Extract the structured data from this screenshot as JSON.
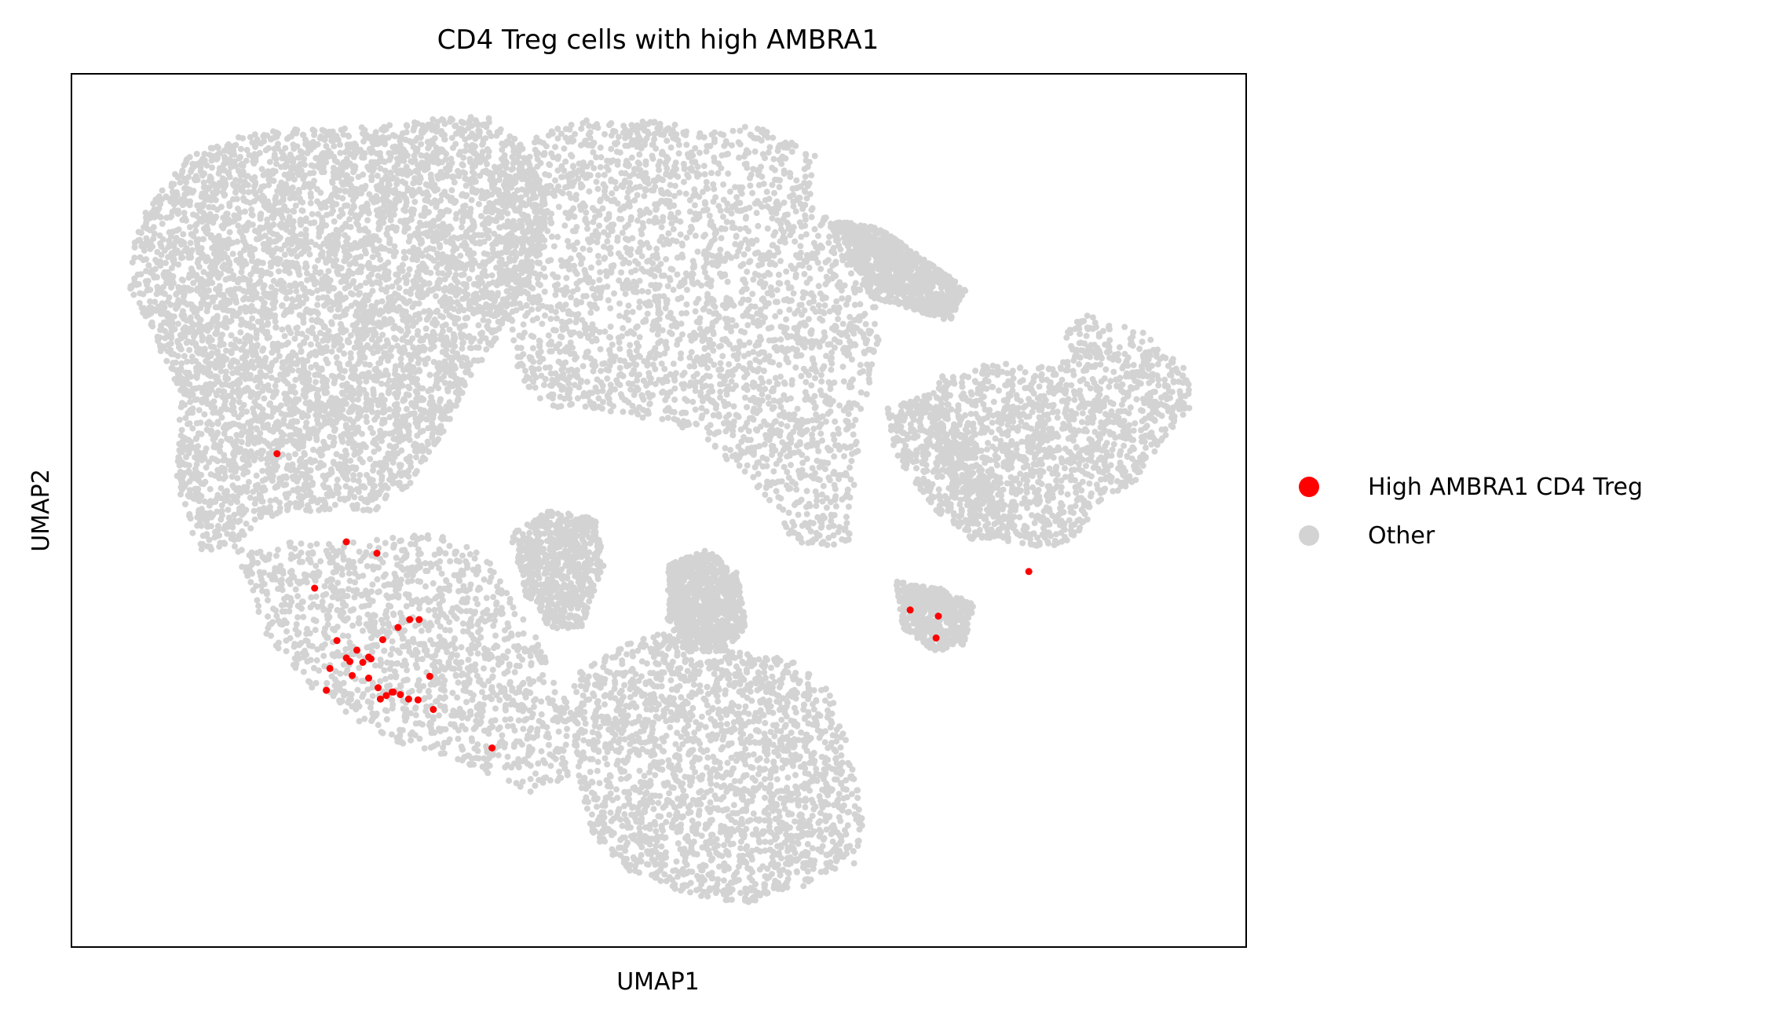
{
  "chart_data": {
    "type": "scatter",
    "title": "CD4 Treg cells with high AMBRA1",
    "xlabel": "UMAP1",
    "ylabel": "UMAP2",
    "ticks_shown": false,
    "grid": false,
    "legend_position": "right",
    "series": [
      {
        "name": "High AMBRA1 CD4 Treg",
        "color": "#ff0000",
        "points": [
          [
            0.305,
            0.69
          ],
          [
            0.217,
            0.706
          ],
          [
            0.26,
            0.549
          ],
          [
            0.175,
            0.435
          ],
          [
            0.234,
            0.536
          ],
          [
            0.207,
            0.589
          ],
          [
            0.296,
            0.625
          ],
          [
            0.288,
            0.625
          ],
          [
            0.278,
            0.634
          ],
          [
            0.265,
            0.648
          ],
          [
            0.226,
            0.649
          ],
          [
            0.253,
            0.668
          ],
          [
            0.243,
            0.66
          ],
          [
            0.255,
            0.67
          ],
          [
            0.248,
            0.674
          ],
          [
            0.234,
            0.669
          ],
          [
            0.237,
            0.673
          ],
          [
            0.22,
            0.681
          ],
          [
            0.239,
            0.689
          ],
          [
            0.253,
            0.692
          ],
          [
            0.261,
            0.703
          ],
          [
            0.273,
            0.708
          ],
          [
            0.268,
            0.712
          ],
          [
            0.274,
            0.708
          ],
          [
            0.287,
            0.716
          ],
          [
            0.295,
            0.717
          ],
          [
            0.28,
            0.711
          ],
          [
            0.263,
            0.716
          ],
          [
            0.308,
            0.728
          ],
          [
            0.358,
            0.772
          ],
          [
            0.714,
            0.614
          ],
          [
            0.738,
            0.621
          ],
          [
            0.736,
            0.646
          ],
          [
            0.815,
            0.57
          ]
        ]
      },
      {
        "name": "Other",
        "color": "#d3d3d3"
      }
    ]
  }
}
